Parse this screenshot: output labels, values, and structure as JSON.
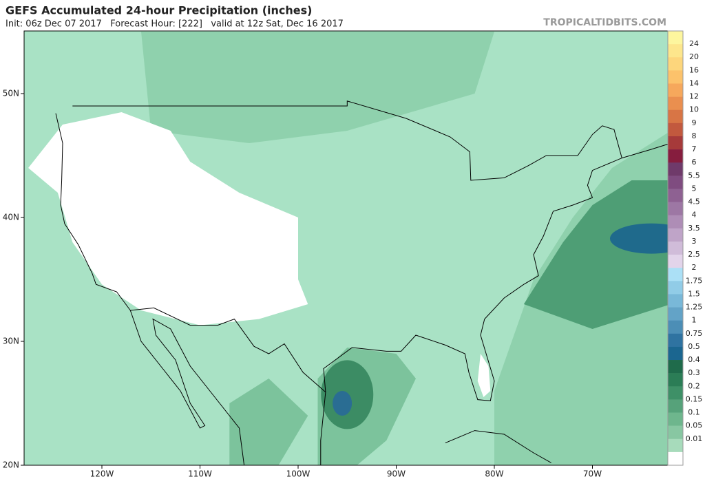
{
  "header": {
    "title": "GEFS Accumulated 24-hour Precipitation (inches)",
    "subtitle": "Init: 06z Dec 07 2017   Forecast Hour: [222]   valid at 12z Sat, Dec 16 2017",
    "source": "TROPICALTIDBITS.COM"
  },
  "map": {
    "lat_labels": [
      "50N",
      "40N",
      "30N",
      "20N"
    ],
    "lon_labels": [
      "120W",
      "110W",
      "100W",
      "90W",
      "80W",
      "70W"
    ]
  },
  "colorbar": {
    "labels": [
      "24",
      "20",
      "16",
      "14",
      "12",
      "10",
      "9",
      "8",
      "7",
      "6",
      "5.5",
      "5",
      "4.5",
      "4",
      "3.5",
      "3",
      "2.5",
      "2",
      "1.75",
      "1.5",
      "1.25",
      "1",
      "0.75",
      "0.5",
      "0.4",
      "0.3",
      "0.2",
      "0.15",
      "0.1",
      "0.05",
      "0.01"
    ],
    "colors": [
      "#fdf69e",
      "#fde68c",
      "#fdd67c",
      "#fcc26b",
      "#f6a85c",
      "#ea8f4f",
      "#d87545",
      "#c2593e",
      "#a63a3a",
      "#861d3e",
      "#6f3a6a",
      "#7f4c80",
      "#8e6192",
      "#9d77a4",
      "#ae8db6",
      "#bfa4c8",
      "#d0bcd9",
      "#e2d4ea",
      "#abe0f6",
      "#91cce7",
      "#79b8d8",
      "#63a3c7",
      "#4c8eb6",
      "#2f73a1",
      "#1b6690",
      "#1f6b4b",
      "#2b7d56",
      "#3e9067",
      "#56a27a",
      "#6eb68d",
      "#88c7a2",
      "#a7dbbb",
      "#ffffff"
    ]
  }
}
